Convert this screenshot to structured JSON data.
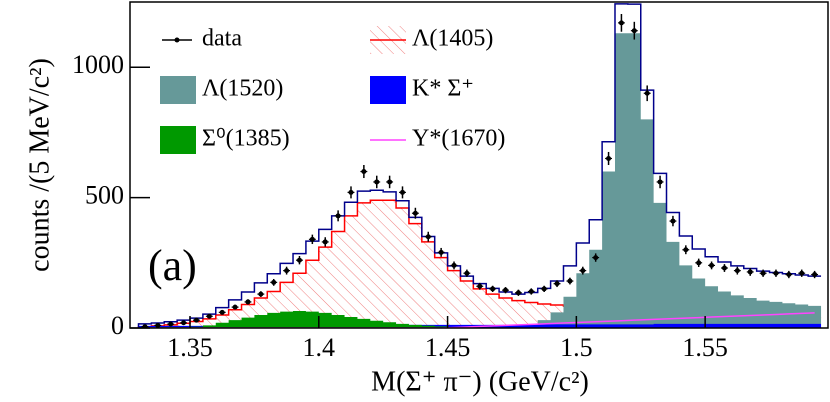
{
  "chart_data": {
    "type": "histogram",
    "xlabel": "M(Σ⁺ π⁻) (GeV/c²)",
    "ylabel": "counts /(5 MeV/c²)",
    "annotation": "(a)",
    "xlim": [
      1.3267,
      1.5977
    ],
    "ylim": [
      0,
      1250
    ],
    "xticks": [
      1.35,
      1.4,
      1.45,
      1.5,
      1.55
    ],
    "yticks": [
      0,
      500,
      1000
    ],
    "legend": "top",
    "bins": [
      1.33,
      1.335,
      1.34,
      1.345,
      1.35,
      1.355,
      1.36,
      1.365,
      1.37,
      1.375,
      1.38,
      1.385,
      1.39,
      1.395,
      1.4,
      1.405,
      1.41,
      1.415,
      1.42,
      1.425,
      1.43,
      1.435,
      1.44,
      1.445,
      1.45,
      1.455,
      1.46,
      1.465,
      1.47,
      1.475,
      1.48,
      1.485,
      1.49,
      1.495,
      1.5,
      1.505,
      1.51,
      1.515,
      1.52,
      1.525,
      1.53,
      1.535,
      1.54,
      1.545,
      1.55,
      1.555,
      1.56,
      1.565,
      1.57,
      1.575,
      1.58,
      1.585,
      1.59,
      1.595
    ],
    "data": {
      "name": "data",
      "color": "#000000",
      "values": [
        5,
        10,
        15,
        20,
        30,
        45,
        60,
        80,
        100,
        130,
        175,
        220,
        260,
        340,
        330,
        430,
        520,
        600,
        560,
        560,
        520,
        440,
        350,
        290,
        240,
        210,
        160,
        150,
        145,
        135,
        140,
        150,
        170,
        180,
        220,
        270,
        650,
        1170,
        1140,
        900,
        560,
        410,
        300,
        250,
        240,
        230,
        220,
        215,
        210,
        210,
        205,
        210,
        205
      ],
      "errors": [
        2,
        3,
        4,
        4,
        5,
        7,
        8,
        9,
        10,
        11,
        13,
        15,
        16,
        18,
        18,
        21,
        23,
        25,
        24,
        24,
        23,
        21,
        19,
        17,
        15,
        14,
        13,
        12,
        12,
        12,
        12,
        12,
        13,
        13,
        15,
        16,
        25,
        34,
        34,
        30,
        24,
        20,
        17,
        16,
        15,
        15,
        15,
        15,
        14,
        14,
        14,
        14,
        14
      ]
    },
    "series": [
      {
        "name": "Λ(1405)",
        "color": "#ff0000",
        "style": "hatch",
        "values": [
          5,
          8,
          12,
          18,
          25,
          35,
          50,
          70,
          90,
          115,
          140,
          175,
          210,
          260,
          310,
          370,
          430,
          480,
          490,
          490,
          460,
          400,
          330,
          270,
          220,
          180,
          150,
          130,
          115,
          105,
          98,
          92,
          88,
          84,
          80,
          77,
          74,
          71,
          68,
          66,
          63,
          61,
          59,
          57,
          55,
          53,
          51,
          49,
          47,
          45,
          43,
          41,
          40
        ]
      },
      {
        "name": "Λ(1520)",
        "color": "#669999",
        "style": "fill",
        "values": [
          0,
          0,
          0,
          0,
          0,
          0,
          0,
          0,
          0,
          0,
          0,
          0,
          0,
          0,
          0,
          0,
          0,
          0,
          0,
          0,
          0,
          0,
          0,
          0,
          0,
          0,
          0,
          0,
          0,
          0,
          10,
          30,
          60,
          120,
          210,
          300,
          600,
          1130,
          1130,
          800,
          480,
          330,
          240,
          190,
          160,
          140,
          125,
          115,
          105,
          100,
          95,
          90,
          85
        ]
      },
      {
        "name": "K* Σ⁺",
        "color": "#0000ff",
        "style": "fill",
        "values": [
          8,
          8,
          8,
          8,
          8,
          8,
          8,
          8,
          8,
          8,
          10,
          10,
          10,
          10,
          10,
          10,
          10,
          10,
          10,
          10,
          12,
          12,
          12,
          12,
          12,
          12,
          12,
          12,
          12,
          12,
          14,
          14,
          14,
          14,
          14,
          14,
          14,
          14,
          14,
          14,
          16,
          16,
          16,
          16,
          16,
          16,
          16,
          16,
          16,
          16,
          16,
          16,
          16
        ]
      },
      {
        "name": "Σ⁰(1385)",
        "color": "#009900",
        "style": "fill",
        "values": [
          3,
          3,
          4,
          4,
          5,
          10,
          20,
          30,
          40,
          50,
          58,
          63,
          65,
          63,
          58,
          50,
          42,
          35,
          28,
          22,
          16,
          12,
          9,
          6,
          4,
          3,
          2,
          2,
          1,
          1,
          0,
          0,
          0,
          0,
          0,
          0,
          0,
          0,
          0,
          0,
          0,
          0,
          0,
          0,
          0,
          0,
          0,
          0,
          0,
          0,
          0,
          0,
          0
        ]
      },
      {
        "name": "Y*(1670)",
        "color": "#ff44ff",
        "style": "line",
        "values": [
          0,
          0,
          0,
          0,
          0,
          0,
          0,
          0,
          0,
          0,
          0,
          0,
          0,
          0,
          0,
          0,
          0,
          0,
          0,
          0,
          0,
          0,
          0,
          0,
          2,
          4,
          6,
          8,
          10,
          12,
          14,
          16,
          18,
          20,
          22,
          24,
          26,
          28,
          30,
          32,
          34,
          36,
          38,
          40,
          42,
          44,
          46,
          48,
          50,
          52,
          54,
          56,
          58
        ]
      }
    ],
    "total_color": "#00008b"
  }
}
